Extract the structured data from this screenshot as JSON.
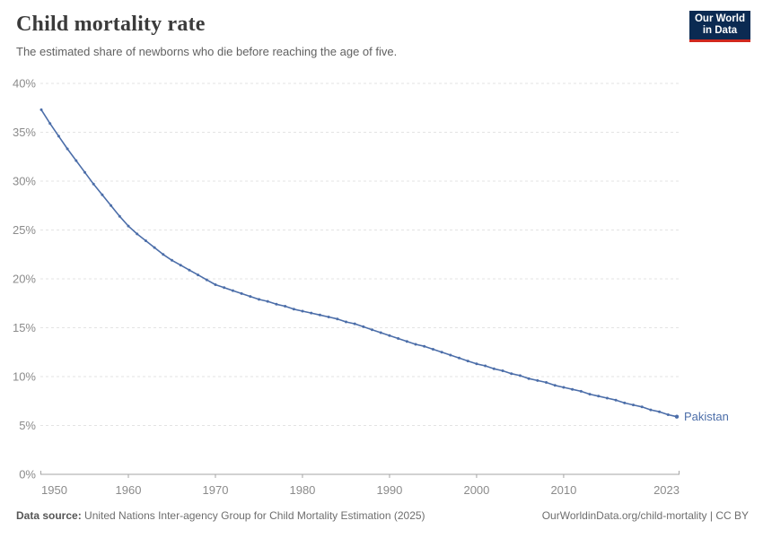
{
  "header": {
    "title": "Child mortality rate",
    "subtitle": "The estimated share of newborns who die before reaching the age of five.",
    "logo": {
      "line1": "Our World",
      "line2": "in Data",
      "bg": "#0b2a52",
      "accent": "#d1281e"
    }
  },
  "chart_data": {
    "type": "line",
    "title": "Child mortality rate",
    "xlabel": "",
    "ylabel": "",
    "xlim": [
      1950,
      2023
    ],
    "ylim": [
      0,
      40
    ],
    "grid": "horizontal-dashed",
    "legend_position": "end-of-line-label",
    "x_ticks": [
      {
        "v": 1950,
        "label": "1950"
      },
      {
        "v": 1960,
        "label": "1960"
      },
      {
        "v": 1970,
        "label": "1970"
      },
      {
        "v": 1980,
        "label": "1980"
      },
      {
        "v": 1990,
        "label": "1990"
      },
      {
        "v": 2000,
        "label": "2000"
      },
      {
        "v": 2010,
        "label": "2010"
      },
      {
        "v": 2023,
        "label": "2023"
      }
    ],
    "y_ticks": [
      {
        "v": 0,
        "label": "0%"
      },
      {
        "v": 5,
        "label": "5%"
      },
      {
        "v": 10,
        "label": "10%"
      },
      {
        "v": 15,
        "label": "15%"
      },
      {
        "v": 20,
        "label": "20%"
      },
      {
        "v": 25,
        "label": "25%"
      },
      {
        "v": 30,
        "label": "30%"
      },
      {
        "v": 35,
        "label": "35%"
      },
      {
        "v": 40,
        "label": "40%"
      }
    ],
    "series": [
      {
        "name": "Pakistan",
        "color": "#4c6ea9",
        "unit": "%",
        "x": [
          1950,
          1951,
          1952,
          1953,
          1954,
          1955,
          1956,
          1957,
          1958,
          1959,
          1960,
          1961,
          1962,
          1963,
          1964,
          1965,
          1966,
          1967,
          1968,
          1969,
          1970,
          1971,
          1972,
          1973,
          1974,
          1975,
          1976,
          1977,
          1978,
          1979,
          1980,
          1981,
          1982,
          1983,
          1984,
          1985,
          1986,
          1987,
          1988,
          1989,
          1990,
          1991,
          1992,
          1993,
          1994,
          1995,
          1996,
          1997,
          1998,
          1999,
          2000,
          2001,
          2002,
          2003,
          2004,
          2005,
          2006,
          2007,
          2008,
          2009,
          2010,
          2011,
          2012,
          2013,
          2014,
          2015,
          2016,
          2017,
          2018,
          2019,
          2020,
          2021,
          2022,
          2023
        ],
        "values": [
          37.3,
          35.9,
          34.6,
          33.3,
          32.1,
          30.9,
          29.7,
          28.6,
          27.5,
          26.4,
          25.4,
          24.6,
          23.9,
          23.2,
          22.5,
          21.9,
          21.4,
          20.9,
          20.4,
          19.9,
          19.4,
          19.1,
          18.8,
          18.5,
          18.2,
          17.9,
          17.7,
          17.4,
          17.2,
          16.9,
          16.7,
          16.5,
          16.3,
          16.1,
          15.9,
          15.6,
          15.4,
          15.1,
          14.8,
          14.5,
          14.2,
          13.9,
          13.6,
          13.3,
          13.1,
          12.8,
          12.5,
          12.2,
          11.9,
          11.6,
          11.3,
          11.1,
          10.8,
          10.6,
          10.3,
          10.1,
          9.8,
          9.6,
          9.4,
          9.1,
          8.9,
          8.7,
          8.5,
          8.2,
          8.0,
          7.8,
          7.6,
          7.3,
          7.1,
          6.9,
          6.6,
          6.4,
          6.1,
          5.9
        ]
      }
    ],
    "colors": {
      "gridline": "#e3e3e3",
      "axis": "#a5a5a5",
      "tick_label": "#8b8b8b"
    }
  },
  "footer": {
    "source_label": "Data source:",
    "source_text": " United Nations Inter-agency Group for Child Mortality Estimation (2025)",
    "link_text": "OurWorldinData.org/child-mortality | CC BY"
  }
}
